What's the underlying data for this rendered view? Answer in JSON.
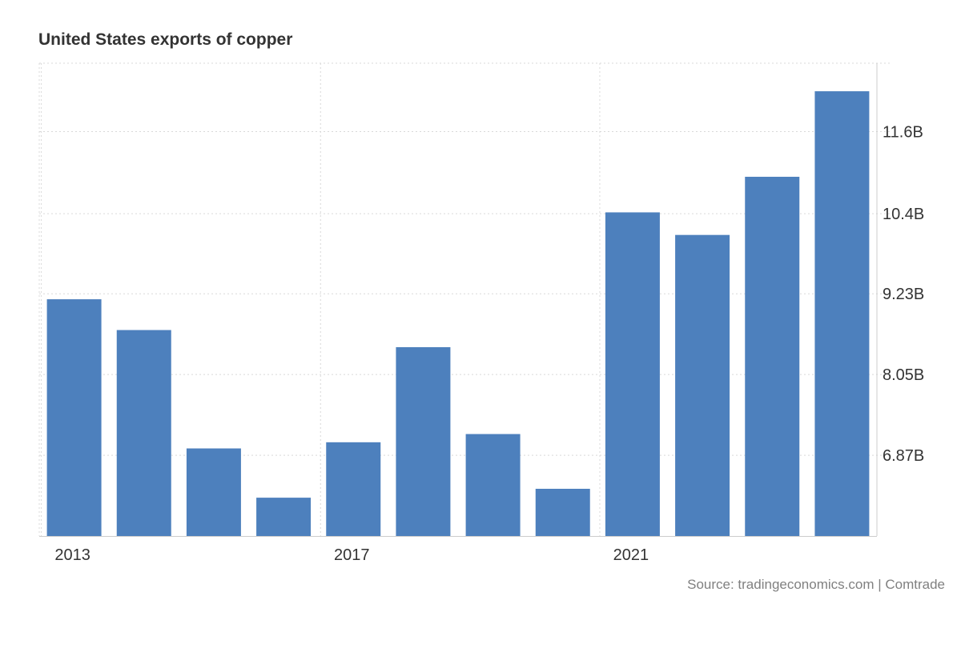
{
  "chart_data": {
    "type": "bar",
    "title": "United States exports of copper",
    "source": "Source: tradingeconomics.com | Comtrade",
    "categories": [
      "2013",
      "2014",
      "2015",
      "2016",
      "2017",
      "2018",
      "2019",
      "2020",
      "2021",
      "2022",
      "2023",
      "2024"
    ],
    "values": [
      9150000000.0,
      8700000000.0,
      6970000000.0,
      6250000000.0,
      7060000000.0,
      8450000000.0,
      7180000000.0,
      6380000000.0,
      10420000000.0,
      10090000000.0,
      10940000000.0,
      12190000000.0
    ],
    "x_tick_labels": [
      {
        "category": "2013",
        "label": "2013"
      },
      {
        "category": "2017",
        "label": "2017"
      },
      {
        "category": "2021",
        "label": "2021"
      }
    ],
    "y_ticks": [
      {
        "value": 6870000000.0,
        "label": "6.87B"
      },
      {
        "value": 8050000000.0,
        "label": "8.05B"
      },
      {
        "value": 9230000000.0,
        "label": "9.23B"
      },
      {
        "value": 10400000000.0,
        "label": "10.4B"
      },
      {
        "value": 11600000000.0,
        "label": "11.6B"
      }
    ],
    "ylim": [
      5690000000.0,
      12600000000.0
    ],
    "xlabel": "",
    "ylabel": "",
    "grid": true,
    "bar_color": "#4d80bd",
    "axis_position": "right"
  }
}
